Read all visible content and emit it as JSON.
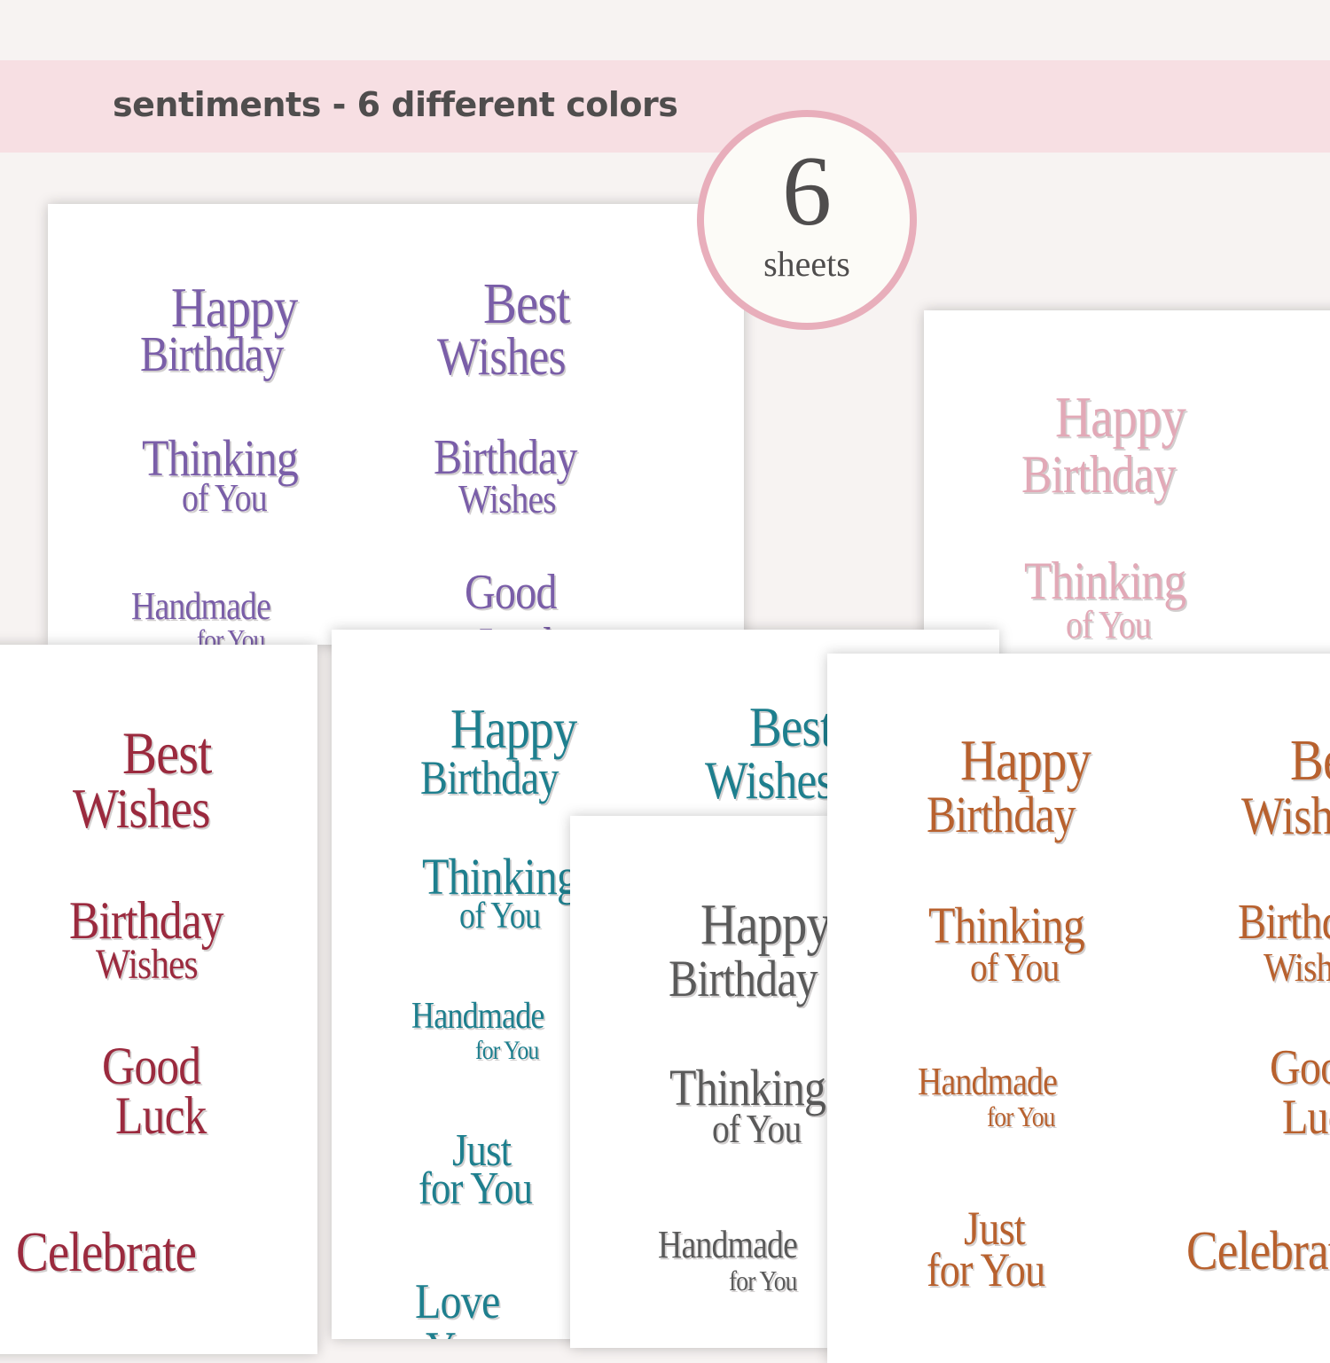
{
  "header": {
    "title": "sentiments - 6 different colors"
  },
  "badge": {
    "number": "6",
    "label": "sheets",
    "border_color": "#e8aebb"
  },
  "sheets": [
    {
      "color": "#7a5ea8",
      "lines": [
        "Happy",
        "Birthday",
        "Best",
        "Wishes",
        "Thinking",
        "of You",
        "Birthday",
        "Wishes",
        "Handmade",
        "for You",
        "Good",
        "Luck"
      ]
    },
    {
      "color": "#e2a9b7",
      "lines": [
        "Happy",
        "Birthday",
        "Thinking",
        "of You"
      ]
    },
    {
      "color": "#9b2a3e",
      "lines": [
        "Best",
        "Wishes",
        "Birthday",
        "Wishes",
        "Good",
        "Luck",
        "Celebrate"
      ]
    },
    {
      "color": "#1e7f8e",
      "lines": [
        "Happy",
        "Birthday",
        "Best",
        "Wishes",
        "Thinking",
        "of You",
        "Handmade",
        "for You",
        "Just",
        "for You",
        "Love",
        "You"
      ]
    },
    {
      "color": "#5a5a5a",
      "lines": [
        "Happy",
        "Birthday",
        "Thinking",
        "of You",
        "Handmade",
        "for You"
      ]
    },
    {
      "color": "#b8612e",
      "lines": [
        "Happy",
        "Birthday",
        "Best",
        "Wishes",
        "Thinking",
        "of You",
        "Birthday",
        "Wishes",
        "Handmade",
        "for You",
        "Good",
        "Luck",
        "Just",
        "for You",
        "Celebrate"
      ]
    }
  ]
}
